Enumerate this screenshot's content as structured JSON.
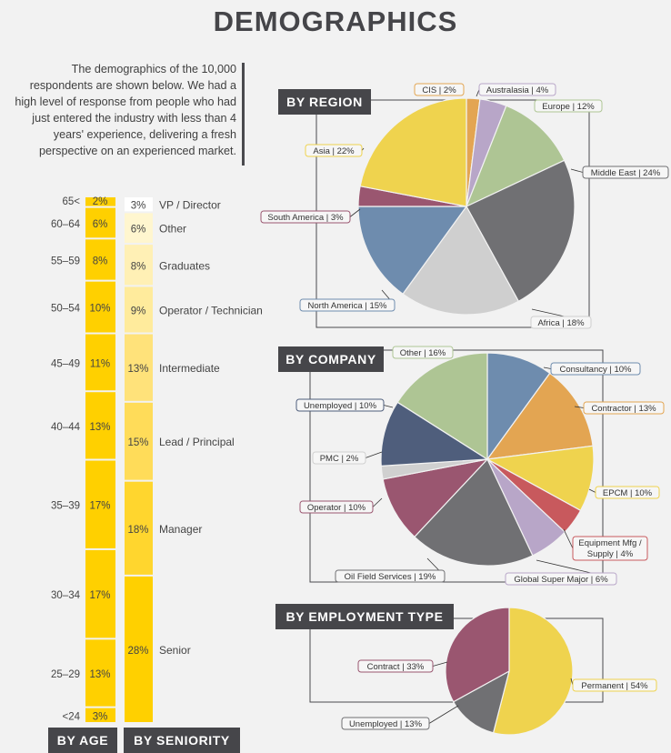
{
  "title": "DEMOGRAPHICS",
  "intro": "The demographics of the 10,000 respondents are shown below. We had a high level of response from people who had just entered the industry with less than 4 years' experience, delivering a fresh perspective on an experienced market.",
  "badges": {
    "region": "BY REGION",
    "company": "BY COMPANY",
    "employment": "BY EMPLOYMENT TYPE",
    "age": "BY AGE",
    "seniority": "BY SENIORITY"
  },
  "chart_data": [
    {
      "type": "pie",
      "title": "BY REGION",
      "slices": [
        {
          "label": "CIS | 2%",
          "value": 2,
          "color": "#e3a552"
        },
        {
          "label": "Australasia | 4%",
          "value": 4,
          "color": "#b8a6c8"
        },
        {
          "label": "Europe | 12%",
          "value": 12,
          "color": "#aec594"
        },
        {
          "label": "Middle East | 24%",
          "value": 24,
          "color": "#707073"
        },
        {
          "label": "Africa | 18%",
          "value": 18,
          "color": "#cfcfcf"
        },
        {
          "label": "North America | 15%",
          "value": 15,
          "color": "#6e8cae"
        },
        {
          "label": "South America | 3%",
          "value": 3,
          "color": "#9a5670"
        },
        {
          "label": "Asia | 22%",
          "value": 22,
          "color": "#efd34e"
        }
      ]
    },
    {
      "type": "pie",
      "title": "BY COMPANY",
      "slices": [
        {
          "label": "Consultancy | 10%",
          "value": 10,
          "color": "#6e8cae"
        },
        {
          "label": "Contractor | 13%",
          "value": 13,
          "color": "#e3a552"
        },
        {
          "label": "EPCM | 10%",
          "value": 10,
          "color": "#efd34e"
        },
        {
          "label": "Equipment Mfg / Supply | 4%",
          "value": 4,
          "color": "#c8595d"
        },
        {
          "label": "Global Super Major | 6%",
          "value": 6,
          "color": "#b8a6c8"
        },
        {
          "label": "Oil Field Services | 19%",
          "value": 19,
          "color": "#707073"
        },
        {
          "label": "Operator | 10%",
          "value": 10,
          "color": "#9a5670"
        },
        {
          "label": "PMC | 2%",
          "value": 2,
          "color": "#d0d0d0"
        },
        {
          "label": "Unemployed | 10%",
          "value": 10,
          "color": "#4f5e7c"
        },
        {
          "label": "Other | 16%",
          "value": 16,
          "color": "#aec594"
        }
      ]
    },
    {
      "type": "pie",
      "title": "BY EMPLOYMENT TYPE",
      "slices": [
        {
          "label": "Permanent | 54%",
          "value": 54,
          "color": "#efd34e"
        },
        {
          "label": "Unemployed | 13%",
          "value": 13,
          "color": "#707073"
        },
        {
          "label": "Contract | 33%",
          "value": 33,
          "color": "#9a5670"
        }
      ]
    },
    {
      "type": "bar",
      "title": "BY AGE",
      "categories": [
        "65<",
        "60–64",
        "55–59",
        "50–54",
        "45–49",
        "40–44",
        "35–39",
        "30–34",
        "25–29",
        "<24"
      ],
      "values": [
        2,
        6,
        8,
        10,
        11,
        13,
        17,
        17,
        13,
        3
      ],
      "value_labels": [
        "2%",
        "6%",
        "8%",
        "10%",
        "11%",
        "13%",
        "17%",
        "17%",
        "13%",
        "3%"
      ],
      "color": "#ffd000"
    },
    {
      "type": "bar",
      "title": "BY SENIORITY",
      "categories": [
        "VP / Director",
        "Other",
        "Graduates",
        "Operator / Technician",
        "Intermediate",
        "Lead / Principal",
        "Manager",
        "Senior"
      ],
      "values": [
        3,
        6,
        8,
        9,
        13,
        15,
        18,
        28
      ],
      "value_labels": [
        "3%",
        "6%",
        "8%",
        "9%",
        "13%",
        "15%",
        "18%",
        "28%"
      ],
      "colors": [
        "#ffffff",
        "#fff6cf",
        "#fff0b5",
        "#ffeb9c",
        "#ffe27a",
        "#ffdc59",
        "#ffd62e",
        "#ffd000"
      ]
    }
  ]
}
